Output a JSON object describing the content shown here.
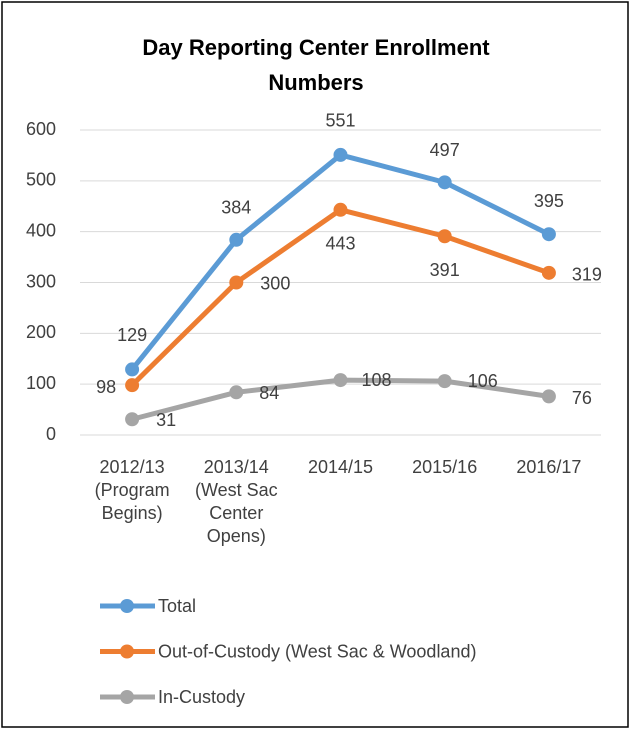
{
  "chart_data": {
    "type": "line",
    "title": "Day Reporting Center Enrollment Numbers",
    "categories": [
      "2012/13 (Program Begins)",
      "2013/14 (West Sac Center Opens)",
      "2014/15",
      "2015/16",
      "2016/17"
    ],
    "series": [
      {
        "name": "Total",
        "color": "#5b9bd5",
        "values": [
          129,
          384,
          551,
          497,
          395
        ]
      },
      {
        "name": "Out-of-Custody (West Sac & Woodland)",
        "color": "#ed7d31",
        "values": [
          98,
          300,
          443,
          391,
          319
        ]
      },
      {
        "name": "In-Custody",
        "color": "#a5a5a5",
        "values": [
          31,
          84,
          108,
          106,
          76
        ]
      }
    ],
    "ylim": [
      0,
      600
    ],
    "yticks": [
      0,
      100,
      200,
      300,
      400,
      500,
      600
    ],
    "grid": true,
    "legend": "bottom"
  }
}
